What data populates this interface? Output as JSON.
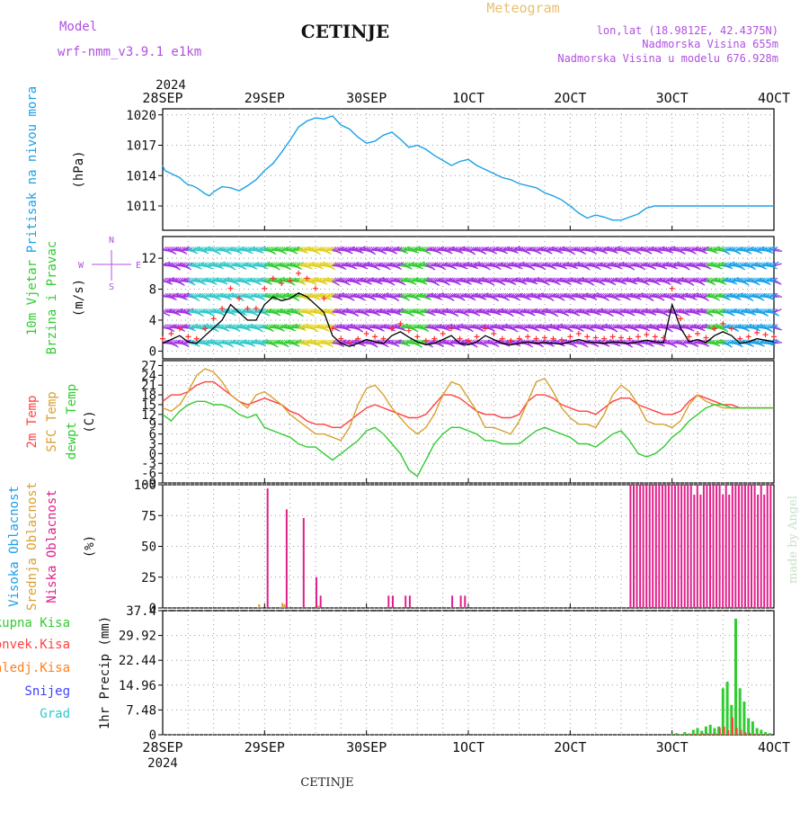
{
  "header": {
    "model_label": "Model",
    "model_value": "wrf-nmm_v3.9.1 e1km",
    "station": "CETINJE",
    "meteogram": "Meteogram",
    "lonlat": "lon,lat (18.9812E, 42.4375N)",
    "elev": "Nadmorska Visina 655m",
    "elev_model": "Nadmorska Visina u modelu 676.928m",
    "footer_station": "CETINJE",
    "credit": "made by Angel"
  },
  "time_axis": {
    "year": "2024",
    "ticks": [
      "28SEP",
      "29SEP",
      "30SEP",
      "1OCT",
      "2OCT",
      "3OCT",
      "4OCT"
    ]
  },
  "chart_data": [
    {
      "id": "pressure",
      "type": "line",
      "ylabel": [
        "Pritisak na nivou mora",
        "(hPa)"
      ],
      "yticks": [
        1011,
        1014,
        1017,
        1020
      ],
      "ylim": [
        1008.6,
        1020.6
      ],
      "grid": true,
      "colors": [
        "#1aa0e8"
      ],
      "series": [
        {
          "x": [
            0,
            0.5,
            1,
            2,
            3,
            4,
            5,
            6,
            7,
            8,
            9,
            10,
            11,
            12,
            14,
            16,
            18,
            20,
            22,
            24,
            26,
            28,
            30,
            32,
            34,
            36,
            38,
            40,
            42,
            44,
            46,
            48,
            50,
            52,
            54,
            56,
            58,
            60,
            62,
            64,
            66,
            68,
            70,
            72,
            74,
            76,
            78,
            80,
            82,
            84,
            86,
            88,
            90,
            92,
            94,
            96,
            98,
            100,
            102,
            104,
            106,
            108,
            110,
            112,
            114,
            116,
            118,
            120,
            122,
            124,
            126,
            128,
            130,
            132,
            134,
            136,
            138,
            140,
            142,
            144
          ],
          "values": [
            1015,
            1014.5,
            1014.4,
            1014.2,
            1014,
            1013.8,
            1013.4,
            1013.1,
            1013.0,
            1012.8,
            1012.5,
            1012.2,
            1012.0,
            1012.4,
            1012.9,
            1012.8,
            1012.5,
            1013.0,
            1013.6,
            1014.5,
            1015.2,
            1016.3,
            1017.5,
            1018.8,
            1019.4,
            1019.7,
            1019.6,
            1019.9,
            1019.0,
            1018.6,
            1017.8,
            1017.2,
            1017.4,
            1018.0,
            1018.3,
            1017.6,
            1016.8,
            1017.0,
            1016.6,
            1016.0,
            1015.5,
            1015.0,
            1015.4,
            1015.6,
            1015.0,
            1014.6,
            1014.2,
            1013.8,
            1013.6,
            1013.2,
            1013.0,
            1012.8,
            1012.3,
            1012.0,
            1011.6,
            1011.0,
            1010.3,
            1009.8,
            1010.1,
            1009.9,
            1009.6,
            1009.6,
            1009.9,
            1010.2,
            1010.8,
            1011.0,
            1011.0,
            1011.0,
            1011.0,
            1011.0,
            1011.0,
            1011.0,
            1011.0,
            1011.0,
            1011.0,
            1011.0,
            1011.0,
            1011.0,
            1011.0,
            1011.0
          ]
        }
      ]
    },
    {
      "id": "wind",
      "type": "line",
      "ylabel": [
        "10m Vjetar",
        "Brzina i Pravac",
        "(m/s)"
      ],
      "compass": [
        "N",
        "W",
        "E",
        "S"
      ],
      "yticks": [
        0,
        4,
        8,
        12
      ],
      "ylim": [
        -1,
        14.8
      ],
      "grid": true,
      "colors": [
        "#000000",
        "#ff3030"
      ],
      "series": [
        {
          "name": "speed",
          "x": [
            0,
            2,
            4,
            6,
            8,
            10,
            12,
            14,
            16,
            18,
            20,
            22,
            24,
            26,
            28,
            30,
            32,
            34,
            36,
            38,
            40,
            42,
            44,
            46,
            48,
            50,
            52,
            54,
            56,
            58,
            60,
            62,
            64,
            66,
            68,
            70,
            72,
            74,
            76,
            78,
            80,
            82,
            84,
            86,
            88,
            90,
            92,
            94,
            96,
            98,
            100,
            102,
            104,
            106,
            108,
            110,
            112,
            114,
            116,
            118,
            120,
            122,
            124,
            126,
            128,
            130,
            132,
            134,
            136,
            138,
            140,
            142,
            144
          ],
          "values": [
            1,
            1.5,
            2,
            1.2,
            1,
            2,
            3,
            4,
            6,
            5,
            4,
            4,
            6,
            7,
            6.5,
            6.8,
            7.5,
            7,
            6,
            5,
            2,
            1,
            0.6,
            1,
            1.5,
            1.2,
            1,
            2,
            2.5,
            1.8,
            1.2,
            0.8,
            1,
            1.5,
            2,
            1,
            0.8,
            1.2,
            2,
            1.5,
            1,
            0.8,
            1,
            1.2,
            1,
            1.1,
            1,
            0.9,
            1.2,
            1.5,
            1.2,
            1.1,
            1,
            1.2,
            1.1,
            1,
            1.2,
            1.4,
            1.2,
            1.1,
            6,
            3,
            1.2,
            1.5,
            1.1,
            2,
            2.5,
            2,
            1,
            1.2,
            1.6,
            1.4,
            1.2
          ]
        }
      ]
    },
    {
      "id": "temperature",
      "type": "line",
      "ylabel": [
        "2m Temp",
        "SFC Temp",
        "dewpt Temp",
        "(C)"
      ],
      "yticks": [
        -9,
        -6,
        -3,
        0,
        3,
        6,
        9,
        12,
        15,
        18,
        21,
        24,
        27
      ],
      "ylim": [
        -9,
        28.5
      ],
      "grid": true,
      "colors": [
        "#ff4040",
        "#d8a030",
        "#30cc30"
      ],
      "series": [
        {
          "name": "2m Temp",
          "x": [
            0,
            2,
            4,
            6,
            8,
            10,
            12,
            14,
            16,
            18,
            20,
            22,
            24,
            26,
            28,
            30,
            32,
            34,
            36,
            38,
            40,
            42,
            44,
            46,
            48,
            50,
            52,
            54,
            56,
            58,
            60,
            62,
            64,
            66,
            68,
            70,
            72,
            74,
            76,
            78,
            80,
            82,
            84,
            86,
            88,
            90,
            92,
            94,
            96,
            98,
            100,
            102,
            104,
            106,
            108,
            110,
            112,
            114,
            116,
            118,
            120,
            122,
            124,
            126,
            128,
            130,
            132,
            134,
            136,
            138,
            140,
            142,
            144
          ],
          "values": [
            16,
            18,
            18,
            19,
            21,
            22,
            22,
            20,
            18,
            16,
            15,
            16,
            17,
            16,
            15,
            13,
            12,
            10,
            9,
            9,
            8,
            8,
            10,
            12,
            14,
            15,
            14,
            13,
            12,
            11,
            11,
            12,
            15,
            18,
            18,
            17,
            15,
            13,
            12,
            12,
            11,
            11,
            12,
            16,
            18,
            18,
            17,
            15,
            14,
            13,
            13,
            12,
            14,
            16,
            17,
            17,
            15,
            14,
            13,
            12,
            12,
            13,
            16,
            18,
            17,
            16,
            15,
            15,
            14,
            14,
            14,
            14,
            14
          ]
        },
        {
          "name": "SFC Temp",
          "x": [
            0,
            2,
            4,
            6,
            8,
            10,
            12,
            14,
            16,
            18,
            20,
            22,
            24,
            26,
            28,
            30,
            32,
            34,
            36,
            38,
            40,
            42,
            44,
            46,
            48,
            50,
            52,
            54,
            56,
            58,
            60,
            62,
            64,
            66,
            68,
            70,
            72,
            74,
            76,
            78,
            80,
            82,
            84,
            86,
            88,
            90,
            92,
            94,
            96,
            98,
            100,
            102,
            104,
            106,
            108,
            110,
            112,
            114,
            116,
            118,
            120,
            122,
            124,
            126,
            128,
            130,
            132,
            134,
            136,
            138,
            140,
            142,
            144
          ],
          "values": [
            14,
            13,
            15,
            19,
            24,
            26,
            25,
            22,
            18,
            16,
            14,
            18,
            19,
            17,
            15,
            12,
            10,
            8,
            6,
            6,
            5,
            4,
            8,
            15,
            20,
            21,
            18,
            14,
            11,
            8,
            6,
            8,
            12,
            18,
            22,
            21,
            17,
            13,
            8,
            8,
            7,
            6,
            10,
            16,
            22,
            23,
            19,
            14,
            11,
            9,
            9,
            8,
            12,
            18,
            21,
            19,
            15,
            10,
            9,
            9,
            8,
            10,
            15,
            18,
            16,
            15,
            14,
            14,
            14,
            14,
            14,
            14,
            14
          ]
        },
        {
          "name": "dewpt Temp",
          "x": [
            0,
            2,
            4,
            6,
            8,
            10,
            12,
            14,
            16,
            18,
            20,
            22,
            24,
            26,
            28,
            30,
            32,
            34,
            36,
            38,
            40,
            42,
            44,
            46,
            48,
            50,
            52,
            54,
            56,
            58,
            60,
            62,
            64,
            66,
            68,
            70,
            72,
            74,
            76,
            78,
            80,
            82,
            84,
            86,
            88,
            90,
            92,
            94,
            96,
            98,
            100,
            102,
            104,
            106,
            108,
            110,
            112,
            114,
            116,
            118,
            120,
            122,
            124,
            126,
            128,
            130,
            132,
            134,
            136,
            138,
            140,
            142,
            144
          ],
          "values": [
            12,
            10,
            13,
            15,
            16,
            16,
            15,
            15,
            14,
            12,
            11,
            12,
            8,
            7,
            6,
            5,
            3,
            2,
            2,
            0,
            -2,
            0,
            2,
            4,
            7,
            8,
            6,
            3,
            0,
            -5,
            -7,
            -2,
            3,
            6,
            8,
            8,
            7,
            6,
            4,
            4,
            3,
            3,
            3,
            5,
            7,
            8,
            7,
            6,
            5,
            3,
            3,
            2,
            4,
            6,
            7,
            4,
            0,
            -1,
            0,
            2,
            5,
            7,
            10,
            12,
            14,
            15,
            15,
            14,
            14,
            14,
            14,
            14,
            14
          ]
        }
      ]
    },
    {
      "id": "clouds",
      "type": "bar",
      "ylabel": [
        "Visoka Oblacnost",
        "Srednja Oblacnost",
        "Niska Oblacnost",
        "(%)"
      ],
      "yticks": [
        0,
        25,
        50,
        75,
        100
      ],
      "ylim": [
        0,
        100
      ],
      "grid": true,
      "colors": [
        "#28a8e8",
        "#d8a030",
        "#e0208a"
      ],
      "low": {
        "x": [
          24.5,
          29,
          33,
          36,
          37,
          53,
          54,
          57,
          58,
          68,
          70,
          71
        ],
        "values": [
          97,
          80,
          73,
          25,
          10,
          10,
          10,
          10,
          10,
          10,
          10,
          10
        ]
      },
      "mid": {
        "x": [
          22.5,
          28,
          28.5,
          36.5
        ],
        "values": [
          3,
          4,
          3,
          2
        ]
      },
      "overcast_start": 110
    },
    {
      "id": "precip",
      "type": "bar",
      "ylabel": [
        "1hr Precip (mm)"
      ],
      "legend": [
        "Ukupna Kisa",
        "Konvek.Kisa",
        "Zaledj.Kisa",
        "Snijeg",
        "Grad"
      ],
      "legend_colors": [
        "#30cc30",
        "#ff4040",
        "#ff8020",
        "#4040ff",
        "#30c8c8"
      ],
      "yticks": [
        0,
        7.48,
        14.96,
        22.44,
        29.92,
        37.4
      ],
      "ylim": [
        0,
        37.4
      ],
      "grid": true,
      "x": [
        120,
        121,
        122,
        123,
        124,
        125,
        126,
        127,
        128,
        129,
        130,
        131,
        132,
        133,
        134,
        135,
        136,
        137,
        138,
        139,
        140,
        141,
        142,
        143
      ],
      "values": [
        0.3,
        0.5,
        0.2,
        0.8,
        0.4,
        1.5,
        2,
        1.2,
        2.5,
        3,
        2,
        2.5,
        14,
        16,
        9,
        35,
        14,
        10,
        5,
        4,
        2,
        1.5,
        0.8,
        0.5
      ]
    }
  ]
}
